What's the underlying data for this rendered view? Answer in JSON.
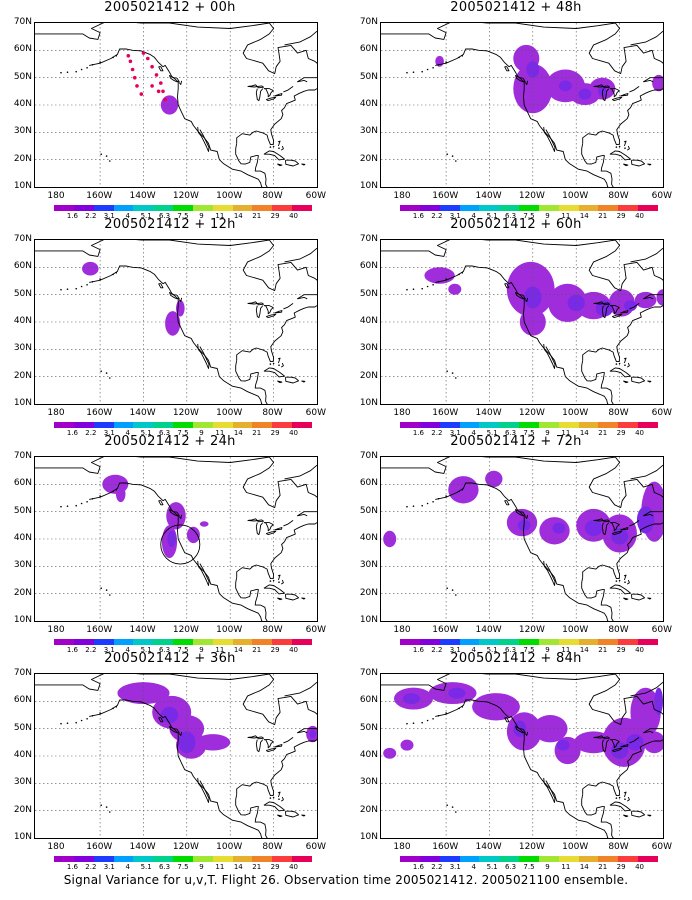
{
  "caption": "Signal Variance for u,v,T. Flight 26. Observation time 2005021412. 2005021100 ensemble.",
  "lat_labels": [
    "70N",
    "60N",
    "50N",
    "40N",
    "30N",
    "20N",
    "10N"
  ],
  "lon_labels": [
    "180",
    "160W",
    "140W",
    "120W",
    "100W",
    "80W",
    "60W"
  ],
  "colorbar": {
    "labels": [
      "1.6",
      "2.2",
      "3.1",
      "4",
      "5.1",
      "6.3",
      "7.5",
      "9",
      "11",
      "14",
      "21",
      "29",
      "40"
    ],
    "colors": [
      "#a000c8",
      "#8200dc",
      "#1e3cff",
      "#00a0ff",
      "#00c8c8",
      "#00d28c",
      "#00dc00",
      "#a0e632",
      "#e6dc32",
      "#e6af2d",
      "#f08228",
      "#fa3c3c",
      "#e6005a"
    ]
  },
  "map_extent": {
    "lon": [
      -190,
      -60
    ],
    "lat": [
      10,
      70
    ]
  },
  "panels": [
    {
      "id": "p00",
      "title": "2005021412 + 00h"
    },
    {
      "id": "p12",
      "title": "2005021412 + 12h"
    },
    {
      "id": "p24",
      "title": "2005021412 + 24h"
    },
    {
      "id": "p36",
      "title": "2005021412 + 36h"
    },
    {
      "id": "p48",
      "title": "2005021412 + 48h"
    },
    {
      "id": "p60",
      "title": "2005021412 + 60h"
    },
    {
      "id": "p72",
      "title": "2005021412 + 72h"
    },
    {
      "id": "p84",
      "title": "2005021412 + 84h"
    }
  ],
  "fill_colors": {
    "outer": "#a02ddc",
    "inner": "#7a2ae6"
  }
}
